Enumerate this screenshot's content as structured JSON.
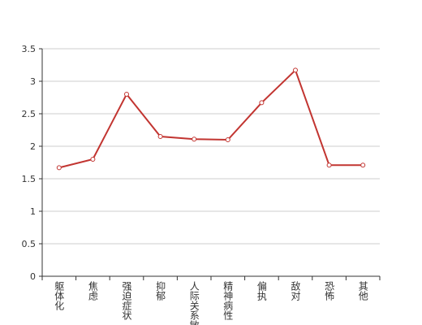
{
  "chart_data": {
    "type": "line",
    "categories": [
      "躯体化",
      "焦虑",
      "强迫症状",
      "抑郁",
      "人际关系敏感",
      "精神病性",
      "偏执",
      "敌对",
      "恐怖",
      "其他"
    ],
    "series": [
      {
        "color": "#c23531",
        "values": [
          1.67,
          1.8,
          2.8,
          2.15,
          2.11,
          2.1,
          2.67,
          3.17,
          1.71,
          1.71
        ]
      }
    ],
    "ylim": [
      0,
      3.5
    ],
    "yticks": [
      0,
      0.5,
      1,
      1.5,
      2,
      2.5,
      3,
      3.5
    ],
    "grid": true
  }
}
